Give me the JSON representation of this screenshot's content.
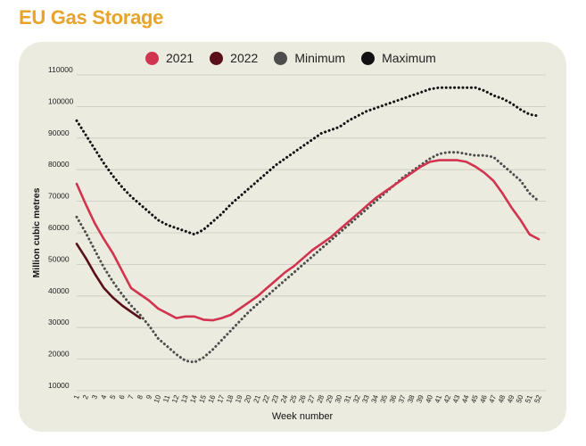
{
  "title": "EU Gas Storage",
  "chart_data": {
    "type": "line",
    "title": "EU Gas Storage",
    "xlabel": "Week number",
    "ylabel": "Million cubic metres",
    "ylim": [
      10000,
      110000
    ],
    "xlim": [
      1,
      52
    ],
    "yticks": [
      10000,
      20000,
      30000,
      40000,
      50000,
      60000,
      70000,
      80000,
      90000,
      100000,
      110000
    ],
    "xticks": [
      1,
      2,
      3,
      4,
      5,
      6,
      7,
      8,
      9,
      10,
      11,
      12,
      13,
      14,
      15,
      16,
      17,
      18,
      19,
      20,
      21,
      22,
      23,
      24,
      25,
      26,
      27,
      28,
      29,
      30,
      31,
      32,
      33,
      34,
      35,
      36,
      37,
      38,
      39,
      40,
      41,
      42,
      43,
      44,
      45,
      46,
      47,
      48,
      49,
      50,
      51,
      52
    ],
    "grid": "horizontal",
    "legend_position": "top",
    "series": [
      {
        "name": "2021",
        "color": "#d1344f",
        "style": "solid",
        "x": [
          1,
          2,
          3,
          4,
          5,
          6,
          7,
          8,
          9,
          10,
          11,
          12,
          13,
          14,
          15,
          16,
          17,
          18,
          19,
          20,
          21,
          22,
          23,
          24,
          25,
          26,
          27,
          28,
          29,
          30,
          31,
          32,
          33,
          34,
          35,
          36,
          37,
          38,
          39,
          40,
          41,
          42,
          43,
          44,
          45,
          46,
          47,
          48,
          49,
          50,
          51,
          52
        ],
        "values": [
          75500,
          69000,
          63000,
          58000,
          53500,
          48000,
          42500,
          40500,
          38500,
          36000,
          34500,
          33000,
          33500,
          33500,
          32500,
          32300,
          33000,
          34000,
          36000,
          38000,
          40000,
          42500,
          45000,
          47500,
          49500,
          52000,
          54500,
          56500,
          58500,
          61000,
          63500,
          66000,
          68500,
          71000,
          73000,
          75000,
          77000,
          79000,
          81000,
          82500,
          83000,
          83000,
          83000,
          82500,
          81000,
          79000,
          76500,
          72500,
          68000,
          64000,
          59500,
          58000
        ]
      },
      {
        "name": "2022",
        "color": "#5a0f18",
        "style": "solid",
        "x": [
          1,
          2,
          3,
          4,
          5,
          6,
          7,
          8
        ],
        "values": [
          56500,
          52000,
          47000,
          42500,
          39500,
          37000,
          35000,
          33000
        ]
      },
      {
        "name": "Minimum",
        "color": "#4d4d4d",
        "style": "dotted",
        "x": [
          1,
          2,
          3,
          4,
          5,
          6,
          7,
          8,
          9,
          10,
          11,
          12,
          13,
          14,
          15,
          16,
          17,
          18,
          19,
          20,
          21,
          22,
          23,
          24,
          25,
          26,
          27,
          28,
          29,
          30,
          31,
          32,
          33,
          34,
          35,
          36,
          37,
          38,
          39,
          40,
          41,
          42,
          43,
          44,
          45,
          46,
          47,
          48,
          49,
          50,
          51,
          52
        ],
        "values": [
          65000,
          60000,
          54500,
          49000,
          44500,
          40500,
          37000,
          34000,
          30500,
          26500,
          24000,
          21500,
          19500,
          19000,
          20500,
          23000,
          26000,
          29000,
          32000,
          35000,
          37500,
          40000,
          42500,
          45000,
          47500,
          50000,
          52500,
          55000,
          57500,
          60000,
          62500,
          65000,
          67500,
          70000,
          72500,
          75000,
          77500,
          79500,
          81500,
          83500,
          85000,
          85500,
          85500,
          85000,
          84500,
          84500,
          84000,
          81500,
          79000,
          76500,
          72500,
          70000
        ]
      },
      {
        "name": "Maximum",
        "color": "#111111",
        "style": "dotted",
        "x": [
          1,
          2,
          3,
          4,
          5,
          6,
          7,
          8,
          9,
          10,
          11,
          12,
          13,
          14,
          15,
          16,
          17,
          18,
          19,
          20,
          21,
          22,
          23,
          24,
          25,
          26,
          27,
          28,
          29,
          30,
          31,
          32,
          33,
          34,
          35,
          36,
          37,
          38,
          39,
          40,
          41,
          42,
          43,
          44,
          45,
          46,
          47,
          48,
          49,
          50,
          51,
          52
        ],
        "values": [
          95500,
          91000,
          86500,
          82000,
          78000,
          74500,
          71500,
          69000,
          66500,
          64000,
          62500,
          61500,
          60500,
          59500,
          61000,
          63500,
          66000,
          69000,
          71500,
          74000,
          76500,
          79000,
          81500,
          83500,
          85500,
          87500,
          89500,
          91500,
          92500,
          93500,
          95500,
          97000,
          98500,
          99500,
          100500,
          101500,
          102500,
          103500,
          104500,
          105500,
          106000,
          106000,
          106000,
          106000,
          106000,
          105000,
          103500,
          102500,
          101000,
          99000,
          97500,
          97000
        ]
      }
    ]
  }
}
